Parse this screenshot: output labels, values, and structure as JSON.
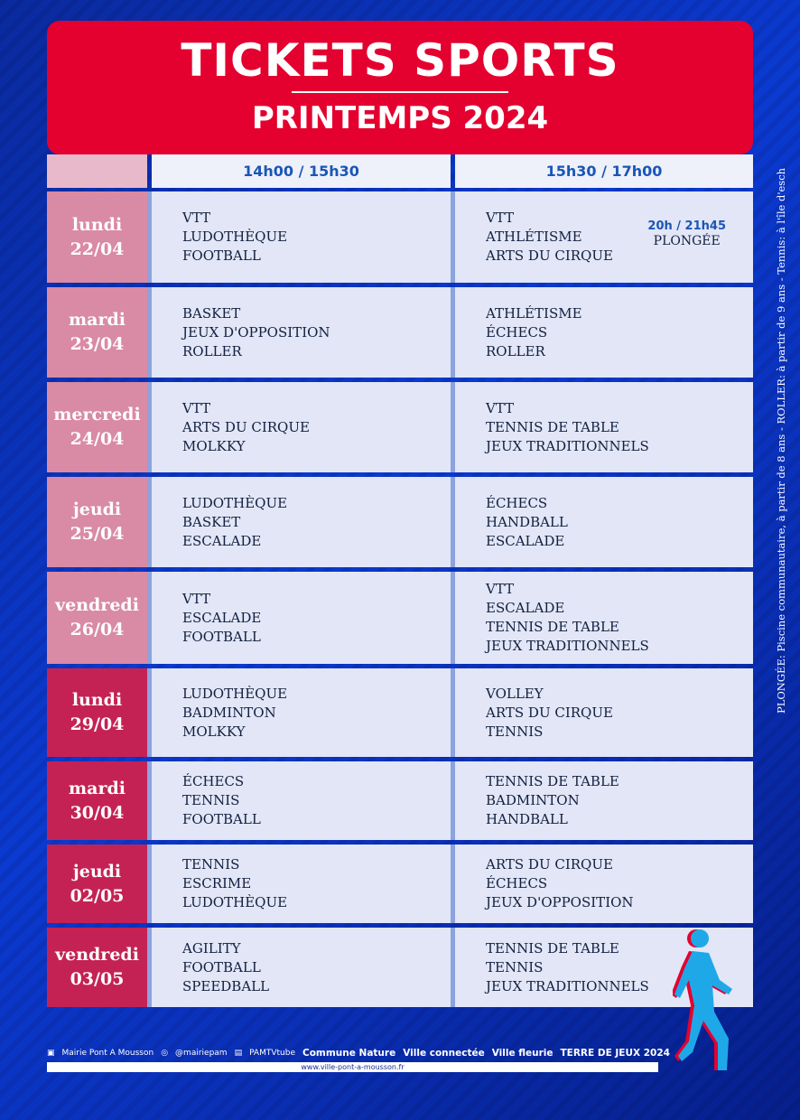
{
  "header": {
    "title": "TICKETS SPORTS",
    "subtitle": "PRINTEMPS 2024"
  },
  "columns": [
    "14h00 / 15h30",
    "15h30 / 17h00"
  ],
  "rows": [
    {
      "day": "lundi",
      "date": "22/04",
      "slot1": [
        "VTT",
        "LUDOTHÈQUE",
        "FOOTBALL"
      ],
      "slot2": [
        "VTT",
        "ATHLÉTISME",
        "ARTS DU CIRQUE"
      ],
      "extra": {
        "time": "20h / 21h45",
        "activity": "PLONGÉE"
      }
    },
    {
      "day": "mardi",
      "date": "23/04",
      "slot1": [
        "BASKET",
        "JEUX D'OPPOSITION",
        "ROLLER"
      ],
      "slot2": [
        "ATHLÉTISME",
        "ÉCHECS",
        "ROLLER"
      ]
    },
    {
      "day": "mercredi",
      "date": "24/04",
      "slot1": [
        "VTT",
        "ARTS DU CIRQUE",
        "MOLKKY"
      ],
      "slot2": [
        "VTT",
        "TENNIS DE TABLE",
        "JEUX TRADITIONNELS"
      ]
    },
    {
      "day": "jeudi",
      "date": "25/04",
      "slot1": [
        "LUDOTHÈQUE",
        "BASKET",
        "ESCALADE"
      ],
      "slot2": [
        "ÉCHECS",
        "HANDBALL",
        "ESCALADE"
      ]
    },
    {
      "day": "vendredi",
      "date": "26/04",
      "slot1": [
        "VTT",
        "ESCALADE",
        "FOOTBALL"
      ],
      "slot2": [
        "VTT",
        "ESCALADE",
        "TENNIS DE TABLE",
        "JEUX TRADITIONNELS"
      ]
    },
    {
      "day": "lundi",
      "date": "29/04",
      "slot1": [
        "LUDOTHÈQUE",
        "BADMINTON",
        "MOLKKY"
      ],
      "slot2": [
        "VOLLEY",
        "ARTS DU CIRQUE",
        "TENNIS"
      ]
    },
    {
      "day": "mardi",
      "date": "30/04",
      "slot1": [
        "ÉCHECS",
        "TENNIS",
        "FOOTBALL"
      ],
      "slot2": [
        "TENNIS DE TABLE",
        "BADMINTON",
        "HANDBALL"
      ]
    },
    {
      "day": "jeudi",
      "date": "02/05",
      "slot1": [
        "TENNIS",
        "ESCRIME",
        "LUDOTHÈQUE"
      ],
      "slot2": [
        "ARTS DU CIRQUE",
        "ÉCHECS",
        "JEUX D'OPPOSITION"
      ]
    },
    {
      "day": "vendredi",
      "date": "03/05",
      "slot1": [
        "AGILITY",
        "FOOTBALL",
        "SPEEDBALL"
      ],
      "slot2": [
        "TENNIS DE TABLE",
        "TENNIS",
        "JEUX TRADITIONNELS"
      ]
    }
  ],
  "side_note": "PLONGÉE: Piscine communautaire, à partir de 8 ans -  ROLLER: à partir de 9 ans - Tennis: à l'île d'esch",
  "footer": {
    "facebook": "Mairie Pont A Mousson",
    "instagram": "@mairiepam",
    "youtube": "PAMTVtube",
    "labels": [
      "Commune Nature",
      "Ville connectée",
      "Ville fleurie",
      "TERRE DE JEUX 2024"
    ],
    "url": "www.ville-pont-a-mousson.fr"
  },
  "colors": {
    "red": "#e4002f",
    "week1_day": "#d98aa5",
    "week2_day": "#c42255",
    "blue_text": "#1a56b5",
    "background": "#0b3ad0"
  }
}
